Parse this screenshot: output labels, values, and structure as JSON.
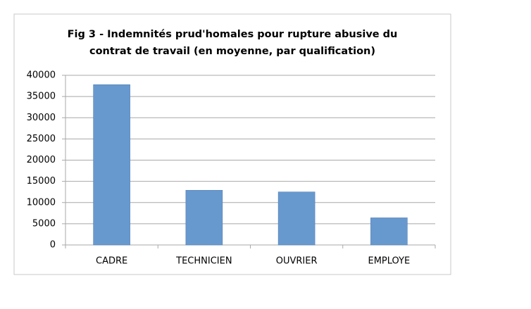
{
  "chart_data": {
    "type": "bar",
    "title": [
      "Fig 3 - Indemnités prud'homales pour rupture abusive du",
      "contrat de travail (en moyenne, par qualification)"
    ],
    "categories": [
      "CADRE",
      "TECHNICIEN",
      "OUVRIER",
      "EMPLOYE"
    ],
    "values": [
      37800,
      12900,
      12500,
      6400
    ],
    "color": "#6799cf",
    "ylim": [
      0,
      40000
    ],
    "yticks": [
      0,
      5000,
      10000,
      15000,
      20000,
      25000,
      30000,
      35000,
      40000
    ],
    "grid": true
  }
}
